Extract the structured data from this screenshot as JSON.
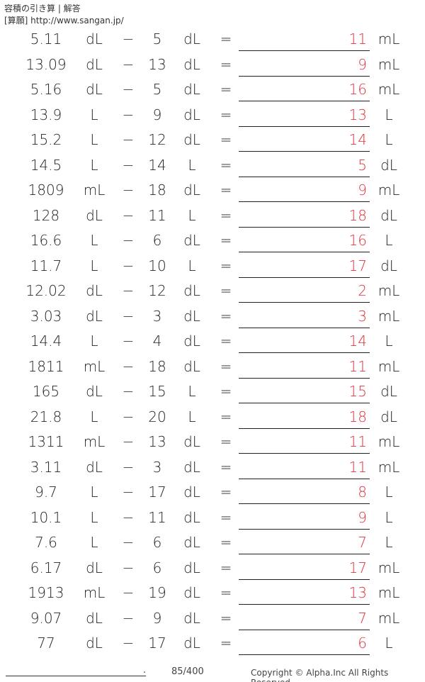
{
  "header": {
    "title": "容積の引き算 | 解答",
    "subtitle": "[算願] http://www.sangan.jp/"
  },
  "operator": "−",
  "equals": "=",
  "colors": {
    "answer": "#e0303a"
  },
  "problems": [
    {
      "a": "5.11",
      "u1": "dL",
      "b": "5",
      "u2": "dL",
      "ans": "11",
      "u3": "mL"
    },
    {
      "a": "13.09",
      "u1": "dL",
      "b": "13",
      "u2": "dL",
      "ans": "9",
      "u3": "mL"
    },
    {
      "a": "5.16",
      "u1": "dL",
      "b": "5",
      "u2": "dL",
      "ans": "16",
      "u3": "mL"
    },
    {
      "a": "13.9",
      "u1": "L",
      "b": "9",
      "u2": "dL",
      "ans": "13",
      "u3": "L"
    },
    {
      "a": "15.2",
      "u1": "L",
      "b": "12",
      "u2": "dL",
      "ans": "14",
      "u3": "L"
    },
    {
      "a": "14.5",
      "u1": "L",
      "b": "14",
      "u2": "L",
      "ans": "5",
      "u3": "dL"
    },
    {
      "a": "1809",
      "u1": "mL",
      "b": "18",
      "u2": "dL",
      "ans": "9",
      "u3": "mL"
    },
    {
      "a": "128",
      "u1": "dL",
      "b": "11",
      "u2": "L",
      "ans": "18",
      "u3": "dL"
    },
    {
      "a": "16.6",
      "u1": "L",
      "b": "6",
      "u2": "dL",
      "ans": "16",
      "u3": "L"
    },
    {
      "a": "11.7",
      "u1": "L",
      "b": "10",
      "u2": "L",
      "ans": "17",
      "u3": "dL"
    },
    {
      "a": "12.02",
      "u1": "dL",
      "b": "12",
      "u2": "dL",
      "ans": "2",
      "u3": "mL"
    },
    {
      "a": "3.03",
      "u1": "dL",
      "b": "3",
      "u2": "dL",
      "ans": "3",
      "u3": "mL"
    },
    {
      "a": "14.4",
      "u1": "L",
      "b": "4",
      "u2": "dL",
      "ans": "14",
      "u3": "L"
    },
    {
      "a": "1811",
      "u1": "mL",
      "b": "18",
      "u2": "dL",
      "ans": "11",
      "u3": "mL"
    },
    {
      "a": "165",
      "u1": "dL",
      "b": "15",
      "u2": "L",
      "ans": "15",
      "u3": "dL"
    },
    {
      "a": "21.8",
      "u1": "L",
      "b": "20",
      "u2": "L",
      "ans": "18",
      "u3": "dL"
    },
    {
      "a": "1311",
      "u1": "mL",
      "b": "13",
      "u2": "dL",
      "ans": "11",
      "u3": "mL"
    },
    {
      "a": "3.11",
      "u1": "dL",
      "b": "3",
      "u2": "dL",
      "ans": "11",
      "u3": "mL"
    },
    {
      "a": "9.7",
      "u1": "L",
      "b": "17",
      "u2": "dL",
      "ans": "8",
      "u3": "L"
    },
    {
      "a": "10.1",
      "u1": "L",
      "b": "11",
      "u2": "dL",
      "ans": "9",
      "u3": "L"
    },
    {
      "a": "7.6",
      "u1": "L",
      "b": "6",
      "u2": "dL",
      "ans": "7",
      "u3": "L"
    },
    {
      "a": "6.17",
      "u1": "dL",
      "b": "6",
      "u2": "dL",
      "ans": "17",
      "u3": "mL"
    },
    {
      "a": "1913",
      "u1": "mL",
      "b": "19",
      "u2": "dL",
      "ans": "13",
      "u3": "mL"
    },
    {
      "a": "9.07",
      "u1": "dL",
      "b": "9",
      "u2": "dL",
      "ans": "7",
      "u3": "mL"
    },
    {
      "a": "77",
      "u1": "dL",
      "b": "17",
      "u2": "dL",
      "ans": "6",
      "u3": "L"
    }
  ],
  "footer": {
    "name_dot": ".",
    "page": "85/400",
    "copyright": "Copyright © Alpha.Inc All Rights Reserved."
  }
}
